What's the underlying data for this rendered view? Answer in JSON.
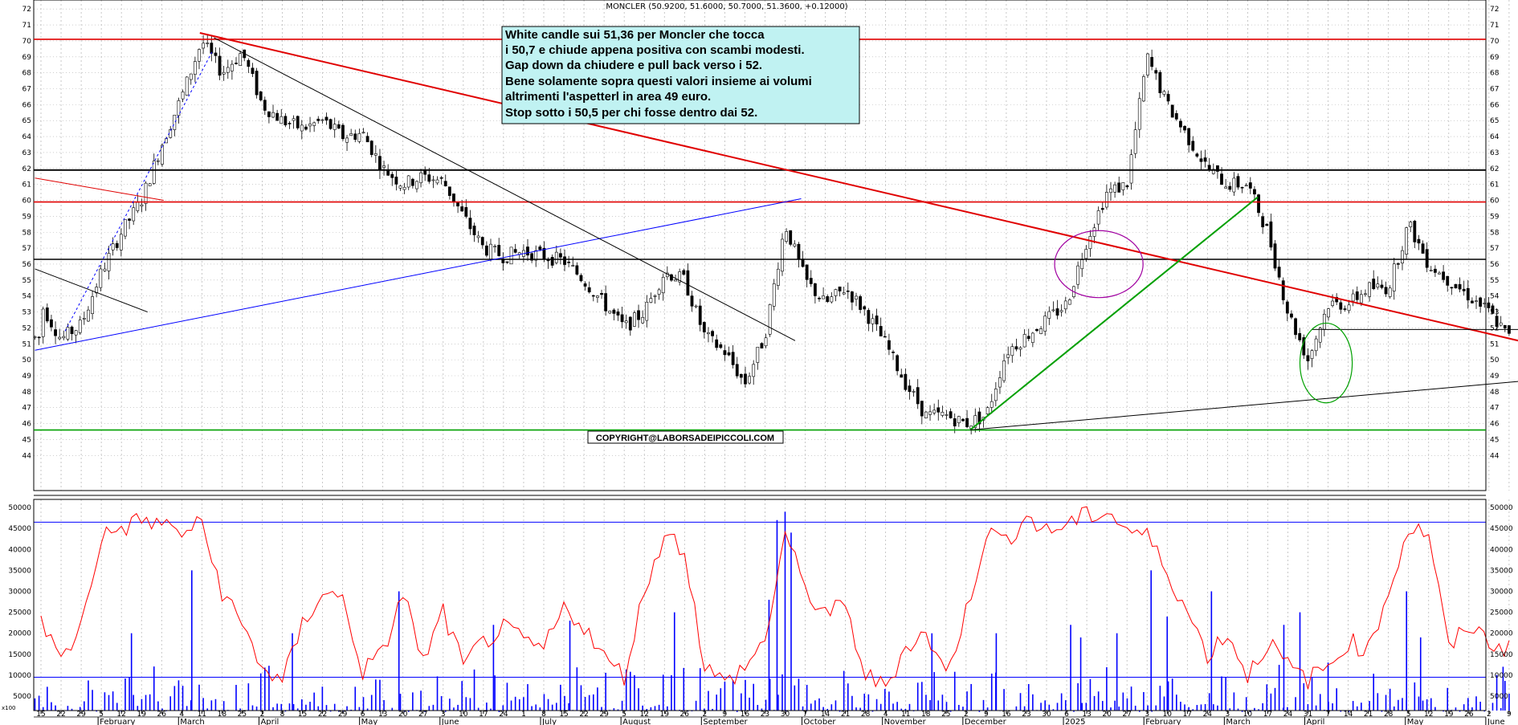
{
  "chart_data": {
    "type": "candlestick",
    "title": "MONCLER (50.9200, 51.6000, 50.7000, 51.3600, +0.12000)",
    "price_axis": {
      "range": [
        43.5,
        72.5
      ],
      "ticks": [
        44,
        45,
        46,
        47,
        48,
        49,
        50,
        51,
        52,
        53,
        54,
        55,
        56,
        57,
        58,
        59,
        60,
        61,
        62,
        63,
        64,
        65,
        66,
        67,
        68,
        69,
        70,
        71,
        72
      ]
    },
    "volume_axis": {
      "range": [
        0,
        52000
      ],
      "ticks": [
        5000,
        10000,
        15000,
        20000,
        25000,
        30000,
        35000,
        40000,
        45000,
        50000
      ],
      "unit_label": "x100"
    },
    "date_ticks": [
      "15",
      "22",
      "29",
      "5",
      "12",
      "19",
      "26",
      "4",
      "11",
      "18",
      "25",
      "2",
      "8",
      "15",
      "22",
      "29",
      "6",
      "13",
      "20",
      "27",
      "3",
      "10",
      "17",
      "24",
      "1",
      "8",
      "15",
      "22",
      "29",
      "5",
      "12",
      "19",
      "26",
      "2",
      "9",
      "16",
      "23",
      "30",
      "7",
      "14",
      "21",
      "28",
      "4",
      "11",
      "18",
      "25",
      "2",
      "9",
      "16",
      "23",
      "30",
      "6",
      "13",
      "20",
      "27",
      "3",
      "10",
      "17",
      "24",
      "3",
      "10",
      "17",
      "24",
      "31",
      "7",
      "14",
      "21",
      "28",
      "5",
      "12",
      "19",
      "26",
      "2",
      "9",
      "16",
      "23",
      "30"
    ],
    "month_labels": [
      {
        "label": "February",
        "tick": 3
      },
      {
        "label": "March",
        "tick": 7
      },
      {
        "label": "April",
        "tick": 11
      },
      {
        "label": "May",
        "tick": 16
      },
      {
        "label": "June",
        "tick": 20
      },
      {
        "label": "July",
        "tick": 25
      },
      {
        "label": "August",
        "tick": 29
      },
      {
        "label": "September",
        "tick": 33
      },
      {
        "label": "October",
        "tick": 38
      },
      {
        "label": "November",
        "tick": 42
      },
      {
        "label": "December",
        "tick": 46
      },
      {
        "label": "2025",
        "tick": 51
      },
      {
        "label": "February",
        "tick": 55
      },
      {
        "label": "March",
        "tick": 59
      },
      {
        "label": "April",
        "tick": 63
      },
      {
        "label": "May",
        "tick": 68
      },
      {
        "label": "June",
        "tick": 72
      }
    ],
    "price_path": [
      [
        0,
        53.5
      ],
      [
        1,
        51.3
      ],
      [
        2,
        52.2
      ],
      [
        3,
        55.5
      ],
      [
        4,
        58.0
      ],
      [
        5,
        60.0
      ],
      [
        6,
        63.5
      ],
      [
        7,
        66.5
      ],
      [
        8,
        70.0
      ],
      [
        9,
        68.0
      ],
      [
        10,
        69.3
      ],
      [
        11,
        66.0
      ],
      [
        12,
        65.0
      ],
      [
        13,
        64.5
      ],
      [
        14,
        65.0
      ],
      [
        15,
        64.0
      ],
      [
        16,
        64.2
      ],
      [
        17,
        62.0
      ],
      [
        18,
        61.0
      ],
      [
        19,
        61.5
      ],
      [
        20,
        61.2
      ],
      [
        21,
        59.0
      ],
      [
        22,
        57.0
      ],
      [
        23,
        56.5
      ],
      [
        24,
        56.8
      ],
      [
        25,
        56.5
      ],
      [
        26,
        56.2
      ],
      [
        27,
        55.0
      ],
      [
        28,
        53.5
      ],
      [
        29,
        52.0
      ],
      [
        30,
        53.0
      ],
      [
        31,
        55.5
      ],
      [
        32,
        55.0
      ],
      [
        33,
        51.5
      ],
      [
        34,
        50.5
      ],
      [
        35,
        48.5
      ],
      [
        36,
        51.5
      ],
      [
        37,
        58.5
      ],
      [
        38,
        55.0
      ],
      [
        39,
        53.5
      ],
      [
        40,
        54.5
      ],
      [
        41,
        53.0
      ],
      [
        42,
        51.0
      ],
      [
        43,
        48.5
      ],
      [
        44,
        46.5
      ],
      [
        45,
        46.5
      ],
      [
        46,
        46.0
      ],
      [
        47,
        46.5
      ],
      [
        48,
        50.5
      ],
      [
        49,
        51.5
      ],
      [
        50,
        52.5
      ],
      [
        51,
        53.5
      ],
      [
        52,
        57.5
      ],
      [
        53,
        60.5
      ],
      [
        54,
        61.0
      ],
      [
        55,
        69.0
      ],
      [
        56,
        66.0
      ],
      [
        57,
        64.0
      ],
      [
        58,
        62.0
      ],
      [
        59,
        61.0
      ],
      [
        60,
        61.0
      ],
      [
        61,
        58.0
      ],
      [
        62,
        53.0
      ],
      [
        63,
        50.0
      ],
      [
        64,
        53.5
      ],
      [
        65,
        53.5
      ],
      [
        66,
        54.5
      ],
      [
        67,
        54.5
      ],
      [
        68,
        58.5
      ],
      [
        69,
        56.0
      ],
      [
        70,
        55.0
      ],
      [
        71,
        54.0
      ],
      [
        72,
        53.0
      ],
      [
        73,
        51.4
      ]
    ],
    "series": [
      {
        "name": "Volume",
        "kind": "bars",
        "color": "#0000ff"
      },
      {
        "name": "Volume average",
        "kind": "line",
        "color": "#ff0000",
        "path": [
          [
            0,
            24000
          ],
          [
            1,
            13000
          ],
          [
            2,
            22000
          ],
          [
            3,
            43000
          ],
          [
            4,
            45000
          ],
          [
            5,
            47000
          ],
          [
            6,
            46000
          ],
          [
            7,
            44000
          ],
          [
            8,
            46000
          ],
          [
            9,
            30000
          ],
          [
            10,
            22000
          ],
          [
            11,
            12000
          ],
          [
            12,
            8000
          ],
          [
            13,
            22000
          ],
          [
            14,
            30000
          ],
          [
            15,
            28000
          ],
          [
            16,
            11000
          ],
          [
            17,
            15000
          ],
          [
            18,
            30000
          ],
          [
            19,
            13000
          ],
          [
            20,
            25000
          ],
          [
            21,
            12000
          ],
          [
            22,
            18000
          ],
          [
            23,
            21000
          ],
          [
            24,
            18000
          ],
          [
            25,
            16000
          ],
          [
            26,
            26000
          ],
          [
            27,
            22000
          ],
          [
            28,
            14000
          ],
          [
            29,
            10000
          ],
          [
            30,
            30000
          ],
          [
            31,
            44000
          ],
          [
            32,
            40000
          ],
          [
            33,
            12000
          ],
          [
            34,
            8000
          ],
          [
            35,
            12000
          ],
          [
            36,
            18000
          ],
          [
            37,
            44000
          ],
          [
            38,
            30000
          ],
          [
            39,
            25000
          ],
          [
            40,
            26000
          ],
          [
            41,
            10000
          ],
          [
            42,
            7000
          ],
          [
            43,
            17000
          ],
          [
            44,
            20000
          ],
          [
            45,
            10000
          ],
          [
            46,
            25000
          ],
          [
            47,
            44000
          ],
          [
            48,
            42000
          ],
          [
            49,
            48000
          ],
          [
            50,
            44000
          ],
          [
            51,
            46000
          ],
          [
            52,
            48000
          ],
          [
            53,
            49000
          ],
          [
            54,
            45000
          ],
          [
            55,
            43000
          ],
          [
            56,
            35000
          ],
          [
            57,
            25000
          ],
          [
            58,
            15000
          ],
          [
            59,
            20000
          ],
          [
            60,
            10000
          ],
          [
            61,
            18000
          ],
          [
            62,
            12000
          ],
          [
            63,
            9000
          ],
          [
            64,
            12000
          ],
          [
            65,
            18000
          ],
          [
            66,
            16000
          ],
          [
            67,
            30000
          ],
          [
            68,
            45000
          ],
          [
            69,
            44000
          ],
          [
            70,
            16000
          ],
          [
            71,
            22000
          ],
          [
            72,
            18000
          ],
          [
            73,
            16000
          ]
        ]
      }
    ],
    "volume_spikes": [
      [
        4.5,
        20000
      ],
      [
        7.5,
        35000
      ],
      [
        12.5,
        20000
      ],
      [
        17.8,
        30000
      ],
      [
        22.5,
        22000
      ],
      [
        26.3,
        23000
      ],
      [
        31.5,
        25000
      ],
      [
        36.2,
        28000
      ],
      [
        36.6,
        47000
      ],
      [
        37.0,
        49000
      ],
      [
        37.3,
        44000
      ],
      [
        44.3,
        20000
      ],
      [
        47.5,
        20000
      ],
      [
        51.2,
        22000
      ],
      [
        51.7,
        19000
      ],
      [
        53.5,
        20000
      ],
      [
        55.2,
        35000
      ],
      [
        56.0,
        24000
      ],
      [
        58.2,
        30000
      ],
      [
        61.8,
        22000
      ],
      [
        62.6,
        25000
      ],
      [
        64.0,
        13000
      ],
      [
        67.9,
        30000
      ],
      [
        68.6,
        19000
      ],
      [
        72.7,
        12000
      ]
    ],
    "volume_lines": [
      46500,
      9500
    ],
    "support_resistance_lines": [
      {
        "price": 70.1,
        "color": "#e00000"
      },
      {
        "price": 61.9,
        "color": "#000000"
      },
      {
        "price": 59.9,
        "color": "#e00000"
      },
      {
        "price": 56.3,
        "color": "#000000"
      },
      {
        "price": 45.6,
        "color": "#00a000"
      }
    ],
    "trend_lines": [
      {
        "from": [
          7.9,
          70.5
        ],
        "to": [
          75.5,
          50.6
        ],
        "color": "#e00000"
      },
      {
        "from": [
          -0.3,
          50.6
        ],
        "to": [
          37.8,
          60.1
        ],
        "color": "#0000ff"
      },
      {
        "from": [
          8.6,
          70.2
        ],
        "to": [
          37.5,
          51.2
        ],
        "color": "#000000"
      },
      {
        "from": [
          -0.3,
          55.7
        ],
        "to": [
          5.3,
          53.0
        ],
        "color": "#000000"
      },
      {
        "from": [
          -0.3,
          61.4
        ],
        "to": [
          6.1,
          60.0
        ],
        "color": "#e00000"
      },
      {
        "from": [
          46.2,
          45.6
        ],
        "to": [
          60.5,
          60.2
        ],
        "color": "#00a000"
      },
      {
        "from": [
          46.2,
          45.6
        ],
        "to": [
          74.0,
          48.7
        ],
        "color": "#000000"
      },
      {
        "from": [
          63.2,
          51.9
        ],
        "to": [
          75.5,
          51.9
        ],
        "color": "#000000"
      }
    ],
    "dashed_lines": [
      {
        "from": [
          1.2,
          51.8
        ],
        "to": [
          8.5,
          69.3
        ],
        "color": "#0000ff"
      }
    ],
    "ellipses": [
      {
        "center": [
          52.6,
          56.0
        ],
        "rx_ticks": 2.2,
        "ry_price": 2.1,
        "color": "#a000a0"
      },
      {
        "center": [
          63.9,
          49.8
        ],
        "rx_ticks": 1.3,
        "ry_price": 2.5,
        "color": "#00a000"
      }
    ],
    "annotation_lines": [
      "White candle sui 51,36 per Moncler che tocca",
      "i 50,7 e chiude appena positiva con scambi modesti.",
      "Gap down da chiudere e pull back verso i 52.",
      "Bene solamente sopra questi valori insieme ai volumi",
      "altrimenti l'aspetterl in area 49 euro.",
      "Stop sotto i 50,5 per chi fosse dentro dai 52."
    ],
    "copyright": "COPYRIGHT@LABORSADEIPICCOLI.COM",
    "colors": {
      "up": "#ffffff",
      "down": "#000000",
      "grid": "#b0b0b0",
      "annotation_bg": "#c0f2f2"
    }
  }
}
